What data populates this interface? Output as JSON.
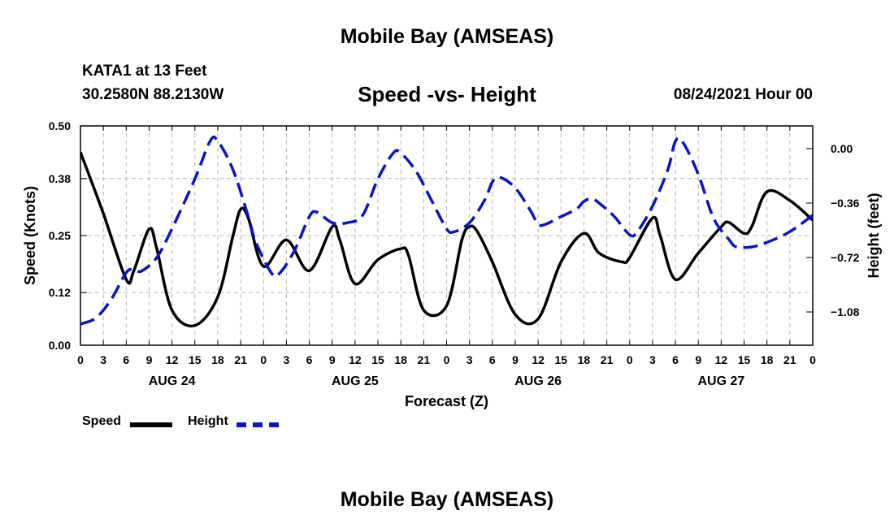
{
  "header": {
    "page_title": "Mobile Bay (AMSEAS)",
    "station": "KATA1 at 13 Feet",
    "coords": "30.2580N  88.2130W",
    "run_time": "08/24/2021 Hour 00",
    "footer_title": "Mobile Bay (AMSEAS)"
  },
  "chart_data": {
    "type": "line",
    "title": "Speed -vs- Height",
    "xlabel": "Forecast (Z)",
    "ylabel_left": "Speed (Knots)",
    "ylabel_right": "Height (feet)",
    "x_tick_labels": [
      "0",
      "3",
      "6",
      "9",
      "12",
      "15",
      "18",
      "21",
      "0",
      "3",
      "6",
      "9",
      "12",
      "15",
      "18",
      "21",
      "0",
      "3",
      "6",
      "9",
      "12",
      "15",
      "18",
      "21",
      "0",
      "3",
      "6",
      "9",
      "12",
      "15",
      "18",
      "21",
      "0"
    ],
    "day_labels": [
      {
        "label": "AUG 24",
        "hour": 12
      },
      {
        "label": "AUG 25",
        "hour": 36
      },
      {
        "label": "AUG 26",
        "hour": 60
      },
      {
        "label": "AUG 27",
        "hour": 84
      }
    ],
    "xlim": [
      0,
      96
    ],
    "y_left": {
      "lim": [
        0,
        0.5
      ],
      "ticks": [
        0.0,
        0.12,
        0.25,
        0.38,
        0.5
      ],
      "tick_labels": [
        "0.00",
        "0.12",
        "0.25",
        "0.38",
        "0.50"
      ]
    },
    "y_right": {
      "lim": [
        -1.3,
        0.15
      ],
      "ticks": [
        0.0,
        -0.36,
        -0.72,
        -1.08
      ],
      "tick_labels": [
        "0.00",
        "−0.36",
        "−0.72",
        "−1.08"
      ]
    },
    "grid": true,
    "series": [
      {
        "name": "Speed",
        "axis": "left",
        "color": "#000000",
        "style": "solid",
        "points": [
          [
            0,
            0.44
          ],
          [
            3,
            0.3
          ],
          [
            6,
            0.15
          ],
          [
            7,
            0.17
          ],
          [
            9,
            0.265
          ],
          [
            10,
            0.22
          ],
          [
            12,
            0.08
          ],
          [
            15,
            0.045
          ],
          [
            18,
            0.11
          ],
          [
            20,
            0.25
          ],
          [
            21,
            0.31
          ],
          [
            22,
            0.29
          ],
          [
            24,
            0.18
          ],
          [
            27,
            0.24
          ],
          [
            30,
            0.17
          ],
          [
            33,
            0.27
          ],
          [
            34,
            0.24
          ],
          [
            36,
            0.14
          ],
          [
            39,
            0.195
          ],
          [
            42,
            0.22
          ],
          [
            43,
            0.205
          ],
          [
            45,
            0.08
          ],
          [
            48,
            0.09
          ],
          [
            50,
            0.24
          ],
          [
            51,
            0.27
          ],
          [
            52,
            0.26
          ],
          [
            54,
            0.19
          ],
          [
            57,
            0.07
          ],
          [
            60,
            0.06
          ],
          [
            63,
            0.19
          ],
          [
            66,
            0.255
          ],
          [
            68,
            0.21
          ],
          [
            71,
            0.19
          ],
          [
            72,
            0.2
          ],
          [
            75,
            0.29
          ],
          [
            76,
            0.25
          ],
          [
            78,
            0.15
          ],
          [
            81,
            0.21
          ],
          [
            84,
            0.27
          ],
          [
            85,
            0.28
          ],
          [
            87,
            0.255
          ],
          [
            88,
            0.27
          ],
          [
            90,
            0.35
          ],
          [
            93,
            0.33
          ],
          [
            96,
            0.285
          ]
        ]
      },
      {
        "name": "Height",
        "axis": "right",
        "color": "#0a14c8",
        "style": "dashed",
        "points": [
          [
            0,
            -1.16
          ],
          [
            2,
            -1.12
          ],
          [
            4,
            -1.0
          ],
          [
            6,
            -0.82
          ],
          [
            7,
            -0.8
          ],
          [
            8,
            -0.81
          ],
          [
            10,
            -0.72
          ],
          [
            12,
            -0.53
          ],
          [
            15,
            -0.2
          ],
          [
            17,
            0.05
          ],
          [
            18,
            0.05
          ],
          [
            20,
            -0.14
          ],
          [
            22,
            -0.45
          ],
          [
            23,
            -0.62
          ],
          [
            25,
            -0.82
          ],
          [
            26,
            -0.83
          ],
          [
            28,
            -0.68
          ],
          [
            30,
            -0.45
          ],
          [
            31,
            -0.42
          ],
          [
            33,
            -0.49
          ],
          [
            35,
            -0.49
          ],
          [
            37,
            -0.44
          ],
          [
            39,
            -0.2
          ],
          [
            41,
            -0.03
          ],
          [
            42,
            -0.03
          ],
          [
            44,
            -0.15
          ],
          [
            46,
            -0.34
          ],
          [
            48,
            -0.53
          ],
          [
            49,
            -0.55
          ],
          [
            51,
            -0.49
          ],
          [
            53,
            -0.34
          ],
          [
            54,
            -0.22
          ],
          [
            55,
            -0.19
          ],
          [
            57,
            -0.26
          ],
          [
            59,
            -0.41
          ],
          [
            60,
            -0.5
          ],
          [
            61,
            -0.5
          ],
          [
            63,
            -0.45
          ],
          [
            65,
            -0.4
          ],
          [
            66,
            -0.35
          ],
          [
            67,
            -0.33
          ],
          [
            68,
            -0.36
          ],
          [
            70,
            -0.45
          ],
          [
            72,
            -0.57
          ],
          [
            73,
            -0.55
          ],
          [
            75,
            -0.38
          ],
          [
            77,
            -0.14
          ],
          [
            78,
            0.05
          ],
          [
            79,
            0.04
          ],
          [
            81,
            -0.17
          ],
          [
            83,
            -0.46
          ],
          [
            85,
            -0.6
          ],
          [
            86,
            -0.65
          ],
          [
            88,
            -0.65
          ],
          [
            90,
            -0.62
          ],
          [
            93,
            -0.55
          ],
          [
            96,
            -0.44
          ]
        ]
      }
    ]
  }
}
